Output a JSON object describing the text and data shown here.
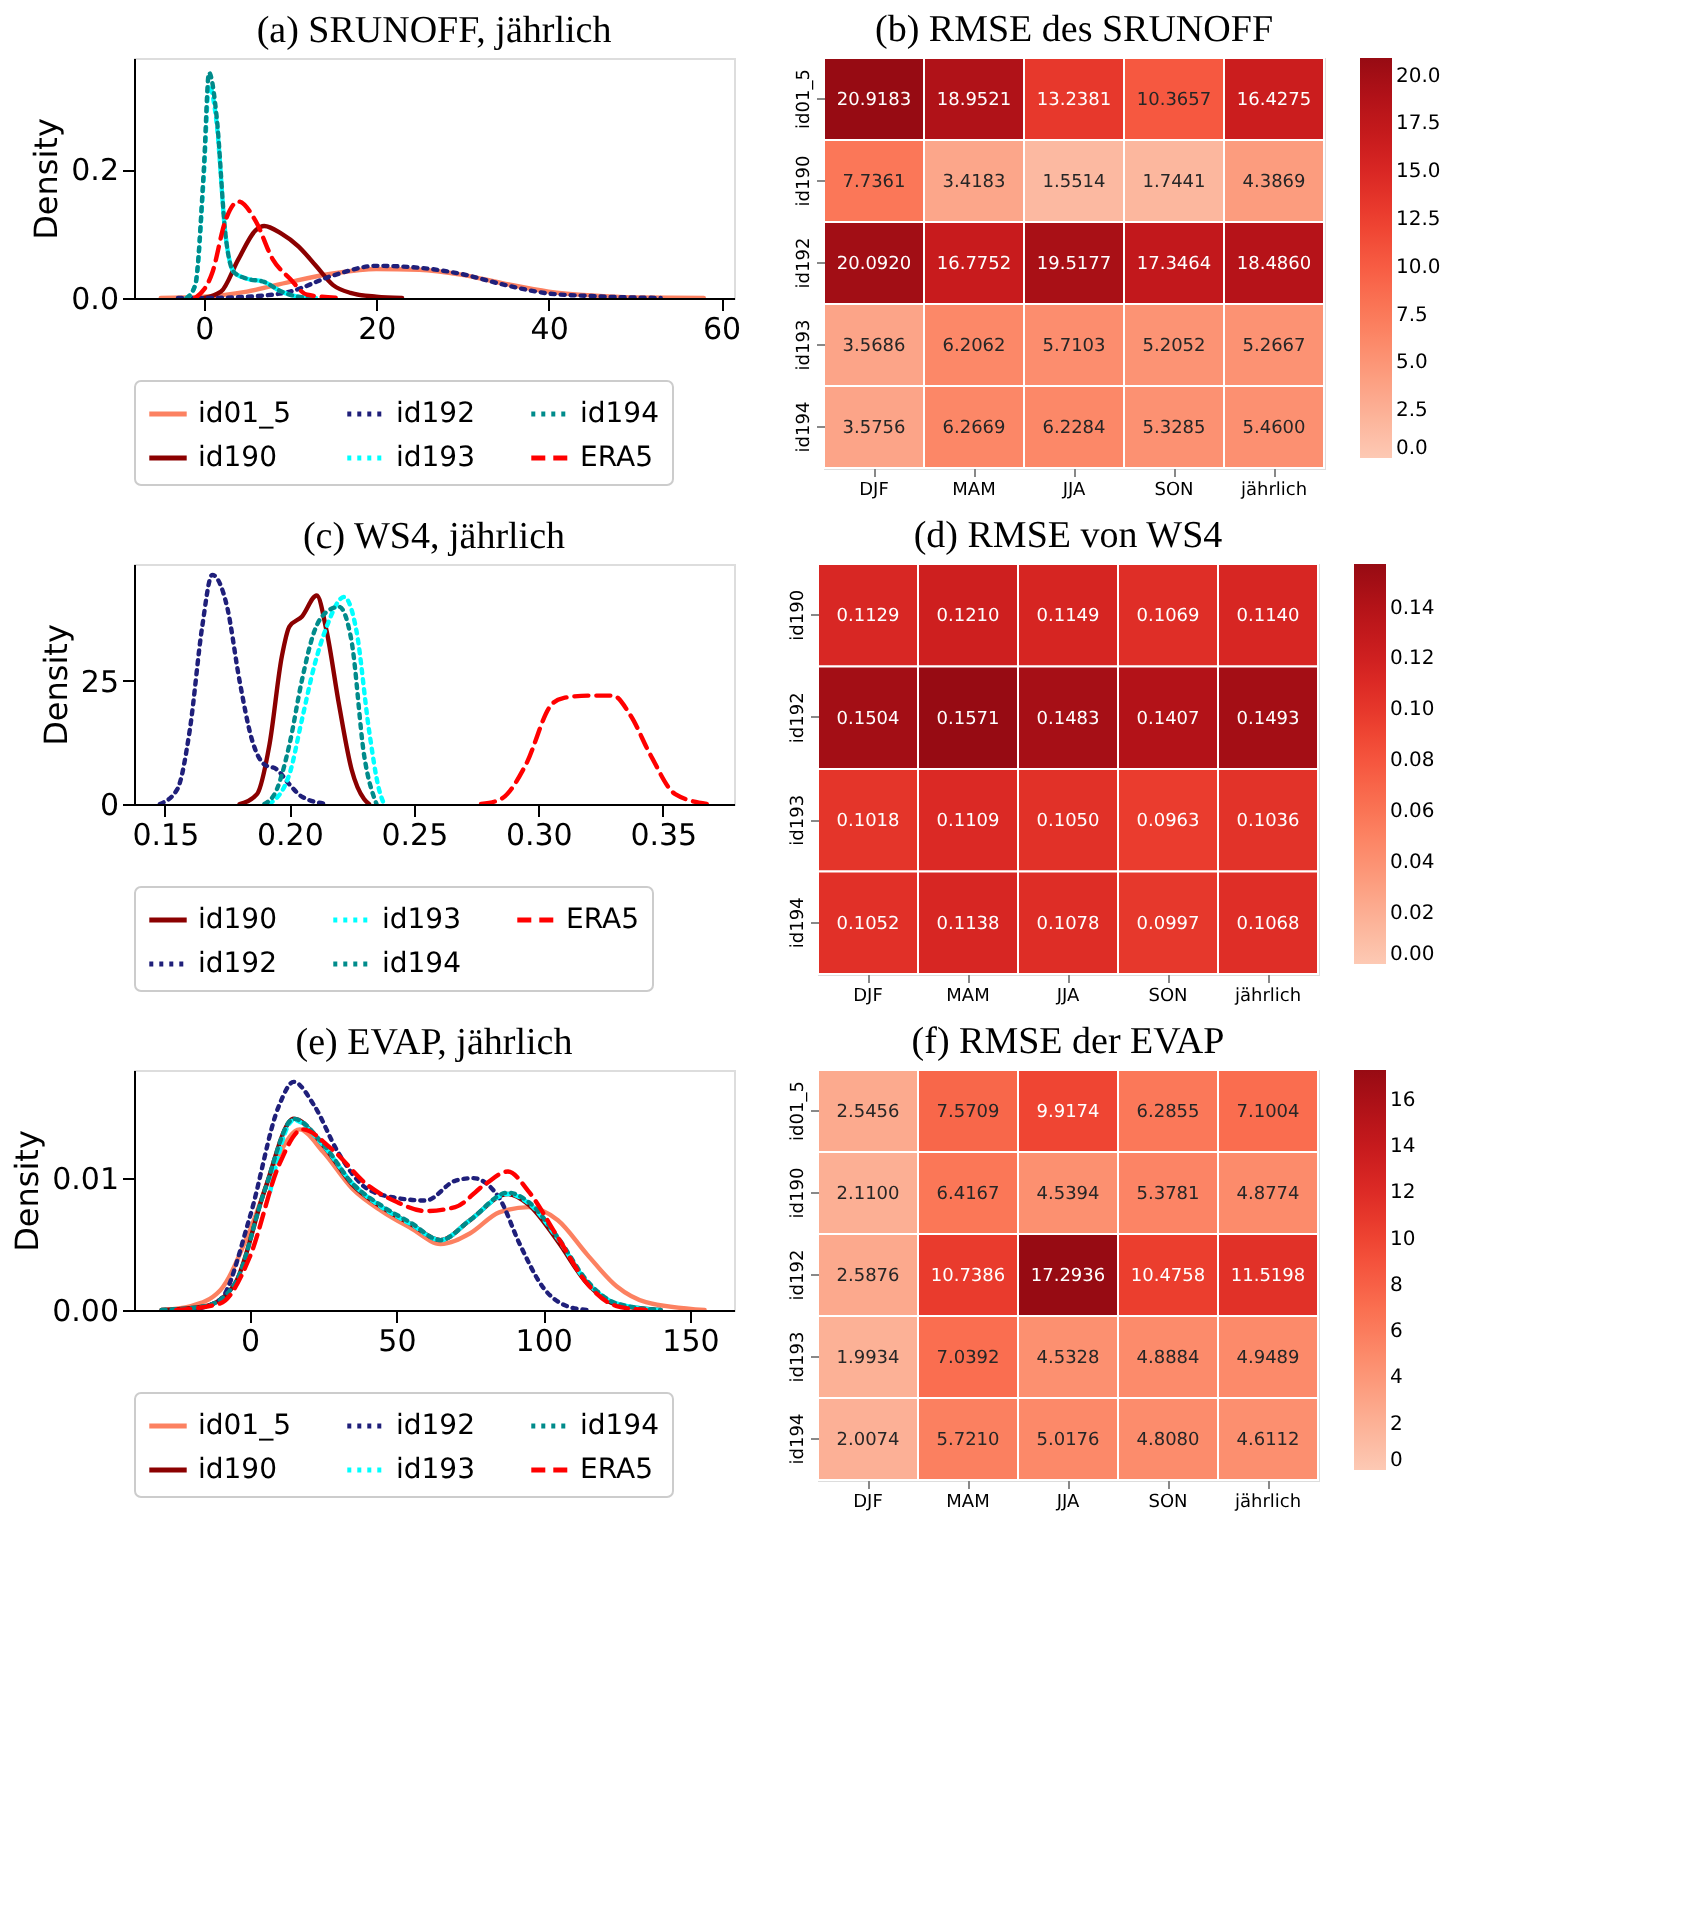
{
  "chart_data": [
    {
      "type": "line",
      "title": "(a) SRUNOFF, jährlich",
      "ylabel": "Density",
      "xlim": [
        -8.1,
        61.5
      ],
      "ylim": [
        0,
        0.373
      ],
      "xticks": [
        0,
        20,
        40,
        60
      ],
      "yticks": [
        {
          "value": 0,
          "label": "0.0"
        },
        0.2
      ],
      "grid": false,
      "legend": "bottom",
      "series": [
        {
          "name": "id01_5",
          "color": "#fc8161",
          "line_style": "solid",
          "x": [
            -5,
            0,
            5,
            10,
            15,
            20,
            25,
            30,
            35,
            40,
            45,
            50,
            58
          ],
          "values": [
            0,
            0.002,
            0.01,
            0.025,
            0.038,
            0.045,
            0.044,
            0.036,
            0.022,
            0.01,
            0.004,
            0.001,
            0
          ]
        },
        {
          "name": "id190",
          "color": "#8b0000",
          "line_style": "solid",
          "x": [
            0,
            2,
            4,
            6,
            7,
            9,
            11,
            13,
            15,
            17,
            20,
            23
          ],
          "values": [
            0,
            0.01,
            0.06,
            0.105,
            0.112,
            0.1,
            0.08,
            0.05,
            0.02,
            0.008,
            0.002,
            0
          ]
        },
        {
          "name": "id192",
          "color": "#1f1f7a",
          "line_style": "dotted",
          "x": [
            -3,
            0,
            5,
            10,
            15,
            20,
            25,
            30,
            35,
            40,
            45,
            53
          ],
          "values": [
            0,
            0,
            0.002,
            0.01,
            0.035,
            0.05,
            0.047,
            0.037,
            0.02,
            0.007,
            0.003,
            0
          ]
        },
        {
          "name": "id193",
          "color": "#00ffff",
          "line_style": "dotted",
          "x": [
            -2,
            -1,
            0,
            0.6,
            1.5,
            2.5,
            3.5,
            5,
            7,
            9,
            11,
            13
          ],
          "values": [
            0,
            0.02,
            0.19,
            0.33,
            0.27,
            0.1,
            0.04,
            0.03,
            0.025,
            0.01,
            0.002,
            0
          ]
        },
        {
          "name": "id194",
          "color": "#008b8b",
          "line_style": "dotted",
          "x": [
            -2,
            -1,
            0,
            0.6,
            1.5,
            2.5,
            3.5,
            5,
            7,
            9,
            11,
            13
          ],
          "values": [
            0,
            0.02,
            0.2,
            0.35,
            0.28,
            0.1,
            0.04,
            0.03,
            0.025,
            0.01,
            0.002,
            0
          ]
        },
        {
          "name": "ERA5",
          "color": "#ff0000",
          "line_style": "dashed",
          "x": [
            -1,
            1,
            2.5,
            4,
            6,
            8,
            10,
            12,
            16
          ],
          "values": [
            0,
            0.04,
            0.12,
            0.15,
            0.12,
            0.06,
            0.03,
            0.005,
            0
          ]
        }
      ]
    },
    {
      "type": "heatmap",
      "title": "(b) RMSE des SRUNOFF",
      "categories": [
        "DJF",
        "MAM",
        "JJA",
        "SON",
        "jährlich"
      ],
      "y_categories": [
        "id01_5",
        "id190",
        "id192",
        "id193",
        "id194"
      ],
      "cells": [
        [
          20.9183,
          18.9521,
          13.2381,
          10.3657,
          16.4275
        ],
        [
          7.7361,
          3.4183,
          1.5514,
          1.7441,
          4.3869
        ],
        [
          20.092,
          16.7752,
          19.5177,
          17.3464,
          18.486
        ],
        [
          3.5686,
          6.2062,
          5.7103,
          5.2052,
          5.2667
        ],
        [
          3.5756,
          6.2669,
          6.2284,
          5.3285,
          5.46
        ]
      ],
      "cell_labels": [
        [
          "20.9183",
          "18.9521",
          "13.2381",
          "10.3657",
          "16.4275"
        ],
        [
          "7.7361",
          "3.4183",
          "1.5514",
          "1.7441",
          "4.3869"
        ],
        [
          "20.0920",
          "16.7752",
          "19.5177",
          "17.3464",
          "18.4860"
        ],
        [
          "3.5686",
          "6.2062",
          "5.7103",
          "5.2052",
          "5.2667"
        ],
        [
          "3.5756",
          "6.2669",
          "6.2284",
          "5.3285",
          "5.4600"
        ]
      ],
      "clim": [
        0,
        20.9183
      ],
      "cticks": [
        {
          "value": 0,
          "label": "0.0"
        },
        2.5,
        {
          "value": 5,
          "label": "5.0"
        },
        7.5,
        {
          "value": 10,
          "label": "10.0"
        },
        12.5,
        {
          "value": 15,
          "label": "15.0"
        },
        17.5,
        {
          "value": 20,
          "label": "20.0"
        }
      ]
    },
    {
      "type": "line",
      "title": "(c) WS4, jährlich",
      "ylabel": "Density",
      "xlim": [
        0.1376,
        0.3786
      ],
      "ylim": [
        0,
        48.7
      ],
      "xticks": [
        0.15,
        {
          "value": 0.2,
          "label": "0.20"
        },
        0.25,
        {
          "value": 0.3,
          "label": "0.30"
        },
        0.35
      ],
      "yticks": [
        0,
        25
      ],
      "grid": false,
      "legend": "bottom",
      "series": [
        {
          "name": "id190",
          "color": "#8b0000",
          "line_style": "solid",
          "x": [
            0.18,
            0.187,
            0.192,
            0.197,
            0.2,
            0.205,
            0.211,
            0.215,
            0.22,
            0.225,
            0.23,
            0.232
          ],
          "values": [
            0,
            2,
            12,
            30,
            36,
            38,
            42.3,
            35,
            20,
            7,
            1,
            0
          ]
        },
        {
          "name": "id192",
          "color": "#1f1f7a",
          "line_style": "dotted",
          "x": [
            0.148,
            0.155,
            0.16,
            0.165,
            0.169,
            0.175,
            0.18,
            0.185,
            0.19,
            0.195,
            0.2,
            0.205,
            0.215
          ],
          "values": [
            0,
            3,
            15,
            36,
            46.5,
            40,
            25,
            13,
            8,
            7,
            4,
            1.5,
            0
          ]
        },
        {
          "name": "id193",
          "color": "#00ffff",
          "line_style": "dotted",
          "x": [
            0.192,
            0.2,
            0.205,
            0.21,
            0.215,
            0.222,
            0.227,
            0.232,
            0.236,
            0.238
          ],
          "values": [
            0,
            6,
            17,
            28,
            36,
            42,
            35,
            15,
            3,
            0
          ]
        },
        {
          "name": "id194",
          "color": "#008b8b",
          "line_style": "dotted",
          "x": [
            0.19,
            0.195,
            0.2,
            0.205,
            0.21,
            0.215,
            0.22,
            0.225,
            0.23,
            0.235
          ],
          "values": [
            0,
            3,
            12,
            25,
            35,
            39,
            40,
            33,
            10,
            0
          ]
        },
        {
          "name": "ERA5",
          "color": "#ff0000",
          "line_style": "dashed",
          "x": [
            0.277,
            0.285,
            0.295,
            0.305,
            0.31,
            0.32,
            0.33,
            0.337,
            0.345,
            0.355,
            0.368
          ],
          "values": [
            0,
            1,
            8,
            20,
            21.5,
            22,
            22,
            18,
            10,
            2,
            0
          ]
        }
      ]
    },
    {
      "type": "heatmap",
      "title": "(d) RMSE von WS4",
      "categories": [
        "DJF",
        "MAM",
        "JJA",
        "SON",
        "jährlich"
      ],
      "y_categories": [
        "id190",
        "id192",
        "id193",
        "id194"
      ],
      "cells": [
        [
          0.1129,
          0.121,
          0.1149,
          0.1069,
          0.114
        ],
        [
          0.1504,
          0.1571,
          0.1483,
          0.1407,
          0.1493
        ],
        [
          0.1018,
          0.1109,
          0.105,
          0.0963,
          0.1036
        ],
        [
          0.1052,
          0.1138,
          0.1078,
          0.0997,
          0.1068
        ]
      ],
      "cell_labels": [
        [
          "0.1129",
          "0.1210",
          "0.1149",
          "0.1069",
          "0.1140"
        ],
        [
          "0.1504",
          "0.1571",
          "0.1483",
          "0.1407",
          "0.1493"
        ],
        [
          "0.1018",
          "0.1109",
          "0.1050",
          "0.0963",
          "0.1036"
        ],
        [
          "0.1052",
          "0.1138",
          "0.1078",
          "0.0997",
          "0.1068"
        ]
      ],
      "clim": [
        0,
        0.1571
      ],
      "cticks": [
        {
          "value": 0,
          "label": "0.00"
        },
        0.02,
        0.04,
        0.06,
        0.08,
        {
          "value": 0.1,
          "label": "0.10"
        },
        0.12,
        0.14
      ]
    },
    {
      "type": "line",
      "title": "(e) EVAP, jährlich",
      "ylabel": "Density",
      "xlim": [
        -39.4,
        165
      ],
      "ylim": [
        0,
        0.0182
      ],
      "xticks": [
        0,
        50,
        100,
        150
      ],
      "yticks": [
        {
          "value": 0,
          "label": "0.00"
        },
        0.01
      ],
      "grid": false,
      "legend": "bottom",
      "series": [
        {
          "name": "id01_5",
          "color": "#fc8161",
          "line_style": "solid",
          "x": [
            -30,
            -20,
            -10,
            0,
            10,
            17,
            25,
            35,
            45,
            55,
            65,
            75,
            85,
            95,
            105,
            115,
            125,
            135,
            155
          ],
          "values": [
            0,
            0.0003,
            0.0015,
            0.006,
            0.0118,
            0.0137,
            0.012,
            0.0092,
            0.0075,
            0.0062,
            0.005,
            0.0058,
            0.0074,
            0.0078,
            0.0068,
            0.0042,
            0.0018,
            0.0006,
            0
          ]
        },
        {
          "name": "id190",
          "color": "#8b0000",
          "line_style": "solid",
          "x": [
            -30,
            -15,
            -5,
            5,
            15,
            25,
            35,
            45,
            55,
            65,
            75,
            88,
            95,
            105,
            115,
            125,
            140
          ],
          "values": [
            0,
            0.0003,
            0.002,
            0.009,
            0.0145,
            0.0125,
            0.0095,
            0.0078,
            0.0065,
            0.0053,
            0.0068,
            0.0088,
            0.008,
            0.0052,
            0.002,
            0.0004,
            0
          ]
        },
        {
          "name": "id192",
          "color": "#1f1f7a",
          "line_style": "dotted",
          "x": [
            -20,
            -10,
            0,
            10,
            15,
            22,
            30,
            40,
            50,
            60,
            70,
            76,
            85,
            92,
            100,
            108,
            115
          ],
          "values": [
            0,
            0.0008,
            0.007,
            0.0155,
            0.0173,
            0.0155,
            0.012,
            0.0092,
            0.0085,
            0.0083,
            0.0098,
            0.01,
            0.0085,
            0.005,
            0.0017,
            0.0003,
            0
          ]
        },
        {
          "name": "id193",
          "color": "#00ffff",
          "line_style": "dotted",
          "x": [
            7,
            15,
            25,
            35,
            45,
            55,
            65,
            75,
            88,
            95,
            105,
            115,
            125,
            140
          ],
          "values": [
            0.009,
            0.0144,
            0.0125,
            0.0096,
            0.0078,
            0.0065,
            0.0053,
            0.0068,
            0.0088,
            0.0081,
            0.0054,
            0.0021,
            0.0005,
            0
          ]
        },
        {
          "name": "id194",
          "color": "#008b8b",
          "line_style": "dotted",
          "x": [
            -30,
            -15,
            -5,
            5,
            15,
            25,
            35,
            45,
            55,
            65,
            75,
            88,
            95,
            105,
            115,
            125,
            140
          ],
          "values": [
            0,
            0.0003,
            0.002,
            0.009,
            0.0145,
            0.0126,
            0.0096,
            0.0079,
            0.0066,
            0.0053,
            0.0068,
            0.0089,
            0.0082,
            0.0055,
            0.0022,
            0.0005,
            0
          ]
        },
        {
          "name": "ERA5",
          "color": "#ff0000",
          "line_style": "dashed",
          "x": [
            -25,
            -10,
            0,
            10,
            18,
            28,
            40,
            50,
            60,
            70,
            80,
            88,
            95,
            105,
            115,
            125,
            135
          ],
          "values": [
            0,
            0.0005,
            0.004,
            0.011,
            0.0137,
            0.0122,
            0.0095,
            0.0082,
            0.0075,
            0.0078,
            0.0095,
            0.0105,
            0.009,
            0.0055,
            0.002,
            0.0003,
            0
          ]
        }
      ]
    },
    {
      "type": "heatmap",
      "title": "(f) RMSE der EVAP",
      "categories": [
        "DJF",
        "MAM",
        "JJA",
        "SON",
        "jährlich"
      ],
      "y_categories": [
        "id01_5",
        "id190",
        "id192",
        "id193",
        "id194"
      ],
      "cells": [
        [
          2.5456,
          7.5709,
          9.9174,
          6.2855,
          7.1004
        ],
        [
          2.11,
          6.4167,
          4.5394,
          5.3781,
          4.8774
        ],
        [
          2.5876,
          10.7386,
          17.2936,
          10.4758,
          11.5198
        ],
        [
          1.9934,
          7.0392,
          4.5328,
          4.8884,
          4.9489
        ],
        [
          2.0074,
          5.721,
          5.0176,
          4.808,
          4.6112
        ]
      ],
      "cell_labels": [
        [
          "2.5456",
          "7.5709",
          "9.9174",
          "6.2855",
          "7.1004"
        ],
        [
          "2.1100",
          "6.4167",
          "4.5394",
          "5.3781",
          "4.8774"
        ],
        [
          "2.5876",
          "10.7386",
          "17.2936",
          "10.4758",
          "11.5198"
        ],
        [
          "1.9934",
          "7.0392",
          "4.5328",
          "4.8884",
          "4.9489"
        ],
        [
          "2.0074",
          "5.7210",
          "5.0176",
          "4.8080",
          "4.6112"
        ]
      ],
      "clim": [
        0,
        17.2936
      ],
      "cticks": [
        0,
        2,
        4,
        6,
        8,
        10,
        12,
        14,
        16
      ]
    }
  ]
}
